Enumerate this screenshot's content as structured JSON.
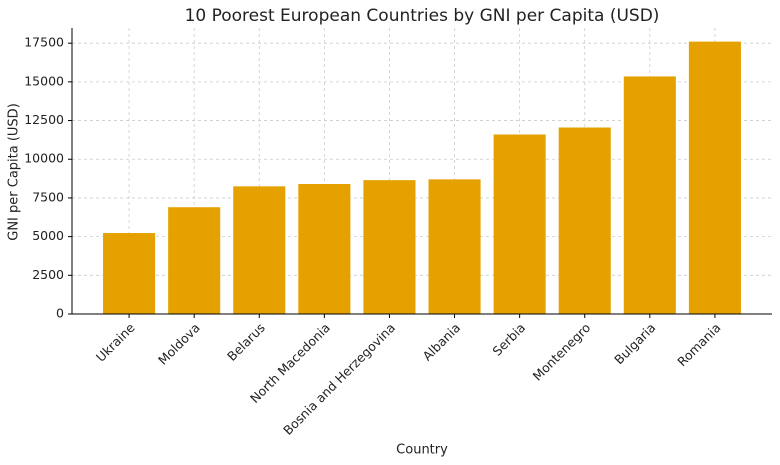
{
  "chart_data": {
    "type": "bar",
    "title": "10 Poorest European Countries by GNI per Capita (USD)",
    "x_label": "Country",
    "y_label": "GNI per Capita (USD)",
    "categories": [
      "Ukraine",
      "Moldova",
      "Belarus",
      "North Macedonia",
      "Bosnia and Herzegovina",
      "Albania",
      "Serbia",
      "Montenegro",
      "Bulgaria",
      "Romania"
    ],
    "values": [
      5230,
      6900,
      8250,
      8400,
      8650,
      8700,
      11600,
      12050,
      15350,
      17600
    ],
    "color": "#e5a100",
    "ylim": [
      0,
      18480
    ],
    "yticks": [
      0,
      2500,
      5000,
      7500,
      10000,
      12500,
      15000,
      17500
    ],
    "grid": true
  }
}
